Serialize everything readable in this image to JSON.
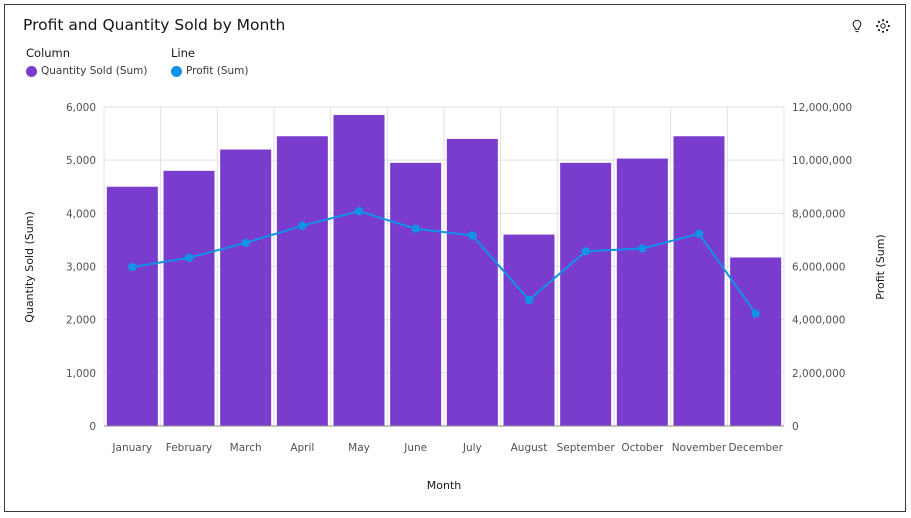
{
  "title": "Profit and Quantity Sold by Month",
  "toolbar": {
    "icons": [
      "lightbulb-icon",
      "settings-icon"
    ]
  },
  "legend": {
    "column_heading": "Column",
    "line_heading": "Line",
    "column_item": "Quantity Sold (Sum)",
    "line_item": "Profit (Sum)"
  },
  "colors": {
    "bars": "#7a3ccd",
    "line": "#1192e8",
    "grid": "#e0e0e0",
    "text": "#525252"
  },
  "chart_data": {
    "type": "bar",
    "categories": [
      "January",
      "February",
      "March",
      "April",
      "May",
      "June",
      "July",
      "August",
      "September",
      "October",
      "November",
      "December"
    ],
    "series": [
      {
        "name": "Quantity Sold (Sum)",
        "type": "bar",
        "axis": "left",
        "values": [
          4500,
          4800,
          5200,
          5450,
          5850,
          4950,
          5400,
          3600,
          4950,
          5030,
          5450,
          3170
        ]
      },
      {
        "name": "Profit (Sum)",
        "type": "line",
        "axis": "right",
        "values": [
          5980000,
          6330000,
          6890000,
          7530000,
          8080000,
          7420000,
          7170000,
          4740000,
          6570000,
          6680000,
          7230000,
          4230000
        ]
      }
    ],
    "xlabel": "Month",
    "ylabel_left": "Quantity Sold (Sum)",
    "ylabel_right": "Profit (Sum)",
    "ylim_left": [
      0,
      6000
    ],
    "ylim_right": [
      0,
      12000000
    ],
    "yticks_left": [
      "0",
      "1,000",
      "2,000",
      "3,000",
      "4,000",
      "5,000",
      "6,000"
    ],
    "yticks_right": [
      "0",
      "2,000,000",
      "4,000,000",
      "6,000,000",
      "8,000,000",
      "10,000,000",
      "12,000,000"
    ],
    "grid": true,
    "legend_position": "top-left"
  }
}
